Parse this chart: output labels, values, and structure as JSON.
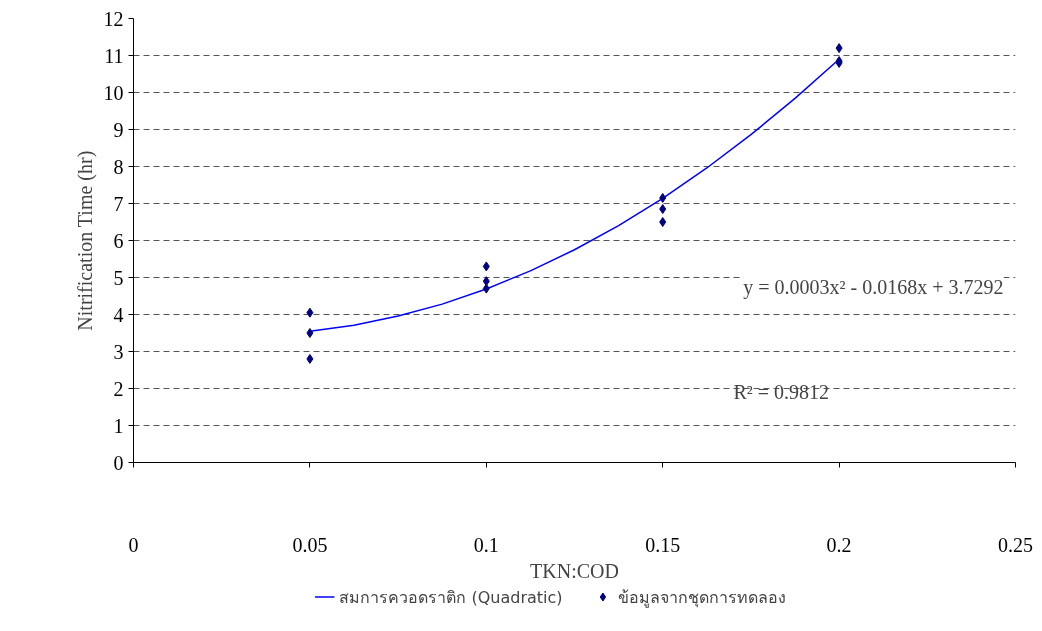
{
  "chart_data": {
    "type": "scatter",
    "xlabel": "TKN:COD",
    "ylabel": "Nitrification Time (hr)",
    "xlim": [
      0,
      0.25
    ],
    "xticks": [
      0,
      0.05,
      0.1,
      0.15,
      0.2,
      0.25
    ],
    "ylim": [
      0,
      12
    ],
    "yticks": [
      0,
      1,
      2,
      3,
      4,
      5,
      6,
      7,
      8,
      9,
      10,
      11,
      12
    ],
    "grid": "y",
    "legend": "bottom",
    "marker": "diamond",
    "series": [
      {
        "name": "สมการควอดราติก (Quadratic)",
        "type": "line",
        "color": "#0000ff",
        "marker": "none",
        "x": [
          0.05,
          0.0625,
          0.075,
          0.0875,
          0.1,
          0.1125,
          0.125,
          0.1375,
          0.15,
          0.1625,
          0.175,
          0.1875,
          0.2
        ],
        "values": [
          3.55,
          3.71,
          3.96,
          4.28,
          4.69,
          5.18,
          5.75,
          6.4,
          7.14,
          7.96,
          8.86,
          9.84,
          10.9
        ]
      },
      {
        "name": "ข้อมูลจากชุดการทดลอง",
        "color": "#000080",
        "x": [
          0.05,
          0.05,
          0.05,
          0.1,
          0.1,
          0.1,
          0.15,
          0.15,
          0.15,
          0.2,
          0.2,
          0.2
        ],
        "values": [
          4.05,
          3.5,
          2.8,
          5.3,
          4.9,
          4.7,
          7.15,
          6.85,
          6.5,
          11.2,
          10.85,
          10.8
        ]
      }
    ],
    "annotations": [
      "y = 0.0003x² - 0.0168x + 3.7292",
      "R² = 0.9812"
    ]
  }
}
